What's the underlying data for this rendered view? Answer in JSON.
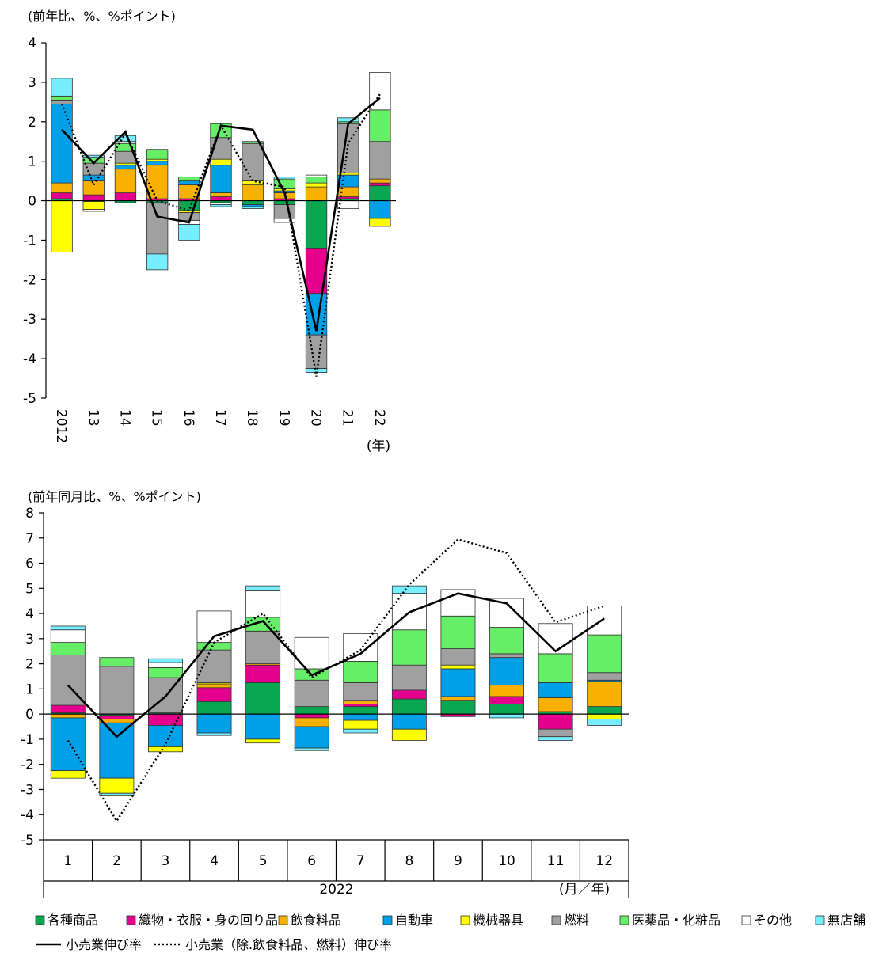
{
  "categories_meta": {
    "names": [
      "各種商品",
      "織物・衣服・身の回り品",
      "飲食料品",
      "自動車",
      "機械器具",
      "燃料",
      "医薬品・化粧品",
      "その他",
      "無店舗"
    ],
    "colors": [
      "#0aa651",
      "#e4008c",
      "#f8b100",
      "#00a0e9",
      "#ffff00",
      "#a0a0a0",
      "#66ee66",
      "#ffffff",
      "#77eeff"
    ]
  },
  "lines_meta": {
    "total": "小売業伸び率",
    "ex": "小売業（除.飲食料品、燃料）伸び率"
  },
  "chart_data": [
    {
      "type": "bar",
      "stacked": true,
      "unit_label": "(前年比、%、%ポイント)",
      "ylim": [
        -5,
        4
      ],
      "yticks": [
        "-5",
        "-4",
        "-3",
        "-2",
        "-1",
        "0",
        "1",
        "2",
        "3",
        "4"
      ],
      "categories": [
        "2012",
        "13",
        "14",
        "15",
        "16",
        "17",
        "18",
        "19",
        "20",
        "21",
        "22"
      ],
      "x_unit": "(年)",
      "series": [
        {
          "name": "各種商品",
          "values": [
            0.05,
            -0.02,
            -0.05,
            -0.05,
            -0.25,
            -0.05,
            -0.1,
            -0.1,
            -1.2,
            0.05,
            0.38
          ]
        },
        {
          "name": "織物・衣服・身の回り品",
          "values": [
            0.15,
            0.15,
            0.2,
            0.05,
            0.05,
            0.1,
            0.0,
            0.05,
            -1.15,
            0.05,
            0.07
          ]
        },
        {
          "name": "飲食料品",
          "values": [
            0.25,
            0.35,
            0.6,
            0.85,
            0.35,
            0.1,
            0.4,
            0.15,
            0.35,
            0.25,
            0.1
          ]
        },
        {
          "name": "自動車",
          "values": [
            2.0,
            0.15,
            0.1,
            0.1,
            0.1,
            0.7,
            -0.05,
            0.05,
            -1.05,
            0.3,
            -0.45
          ]
        },
        {
          "name": "機械器具",
          "values": [
            -1.3,
            -0.2,
            0.05,
            0.05,
            -0.05,
            0.15,
            0.1,
            0.05,
            0.1,
            0.05,
            -0.2
          ]
        },
        {
          "name": "燃料",
          "values": [
            0.1,
            0.3,
            0.3,
            -1.3,
            -0.2,
            0.55,
            0.95,
            -0.35,
            -0.85,
            1.25,
            0.95
          ]
        },
        {
          "name": "医薬品・化粧品",
          "values": [
            0.1,
            0.15,
            0.2,
            0.25,
            0.1,
            0.35,
            0.05,
            0.25,
            0.15,
            0.05,
            0.8
          ]
        },
        {
          "name": "その他",
          "values": [
            0.0,
            -0.05,
            0.05,
            0.0,
            -0.1,
            -0.05,
            0.0,
            -0.1,
            0.05,
            -0.2,
            0.95
          ]
        },
        {
          "name": "無店舗",
          "values": [
            0.45,
            0.05,
            0.15,
            -0.4,
            -0.4,
            -0.05,
            -0.05,
            0.05,
            -0.1,
            0.1,
            0.0
          ]
        }
      ],
      "lines": [
        {
          "name": "小売業伸び率",
          "values": [
            1.8,
            0.95,
            1.75,
            -0.4,
            -0.55,
            1.9,
            1.8,
            0.2,
            -3.3,
            1.95,
            2.6
          ]
        },
        {
          "name": "小売業（除.飲食料品、燃料）伸び率",
          "values": [
            2.45,
            0.4,
            1.7,
            0.0,
            -0.25,
            1.9,
            0.5,
            0.35,
            -4.45,
            1.45,
            2.7
          ]
        }
      ]
    },
    {
      "type": "bar",
      "stacked": true,
      "unit_label": "(前年同月比、%、%ポイント)",
      "ylim": [
        -5,
        8
      ],
      "yticks": [
        "-5",
        "-4",
        "-3",
        "-2",
        "-1",
        "0",
        "1",
        "2",
        "3",
        "4",
        "5",
        "6",
        "7",
        "8"
      ],
      "categories": [
        "1",
        "2",
        "3",
        "4",
        "5",
        "6",
        "7",
        "8",
        "9",
        "10",
        "11",
        "12"
      ],
      "year_label": "2022",
      "x_unit": "(月／年)",
      "series": [
        {
          "name": "各種商品",
          "values": [
            0.05,
            -0.05,
            0.05,
            0.5,
            1.25,
            0.3,
            0.3,
            0.6,
            0.55,
            0.4,
            0.1,
            0.3
          ]
        },
        {
          "name": "織物・衣服・身の回り品",
          "values": [
            0.3,
            -0.15,
            -0.45,
            0.55,
            0.7,
            -0.15,
            0.1,
            0.35,
            -0.1,
            0.3,
            -0.6,
            0.0
          ]
        },
        {
          "name": "飲食料品",
          "values": [
            -0.15,
            -0.15,
            0.0,
            0.15,
            0.05,
            -0.35,
            0.15,
            0.0,
            0.15,
            0.45,
            0.55,
            1.0
          ]
        },
        {
          "name": "自動車",
          "values": [
            -2.1,
            -2.2,
            -0.85,
            -0.75,
            -1.0,
            -0.85,
            -0.25,
            -0.6,
            1.1,
            1.1,
            0.6,
            0.05
          ]
        },
        {
          "name": "機械器具",
          "values": [
            -0.3,
            -0.6,
            -0.2,
            0.05,
            -0.15,
            0.0,
            -0.35,
            -0.45,
            0.15,
            0.0,
            0.0,
            -0.2
          ]
        },
        {
          "name": "燃料",
          "values": [
            2.0,
            1.9,
            1.4,
            1.3,
            1.3,
            1.05,
            0.7,
            1.0,
            0.65,
            0.15,
            -0.3,
            0.3
          ]
        },
        {
          "name": "医薬品・化粧品",
          "values": [
            0.5,
            0.35,
            0.4,
            0.3,
            0.55,
            0.45,
            0.85,
            1.4,
            1.3,
            1.05,
            1.15,
            1.5
          ]
        },
        {
          "name": "その他",
          "values": [
            0.5,
            0.0,
            0.2,
            1.25,
            1.05,
            1.25,
            1.1,
            1.45,
            1.05,
            1.15,
            1.2,
            1.15
          ]
        },
        {
          "name": "無店舗",
          "values": [
            0.15,
            -0.1,
            0.15,
            -0.1,
            0.2,
            -0.1,
            -0.15,
            0.3,
            0.0,
            -0.15,
            -0.15,
            -0.25
          ]
        }
      ],
      "lines": [
        {
          "name": "小売業伸び率",
          "values": [
            1.15,
            -0.9,
            0.7,
            3.1,
            3.7,
            1.55,
            2.4,
            4.05,
            4.8,
            4.4,
            2.5,
            3.8
          ]
        },
        {
          "name": "小売業（除.飲食料品、燃料）伸び率",
          "values": [
            -1.05,
            -4.25,
            -1.2,
            2.85,
            4.0,
            1.45,
            2.55,
            5.15,
            6.95,
            6.4,
            3.65,
            4.3
          ]
        }
      ]
    }
  ]
}
